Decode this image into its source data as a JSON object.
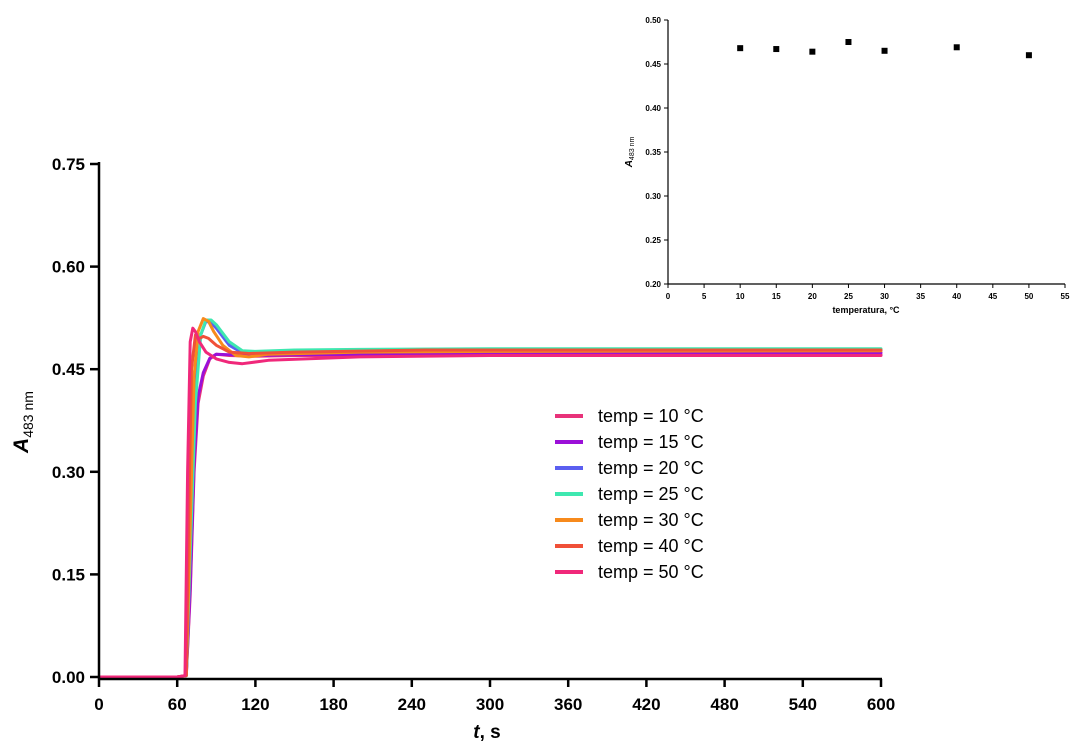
{
  "chart_data": [
    {
      "type": "line",
      "xlabel": {
        "italic": "t",
        "rest": ", s"
      },
      "ylabel": {
        "main": "A",
        "sub": "483 nm"
      },
      "xlim": [
        0,
        600
      ],
      "ylim": [
        0,
        0.75
      ],
      "xticks": [
        "0",
        "60",
        "120",
        "180",
        "240",
        "300",
        "360",
        "420",
        "480",
        "540",
        "600"
      ],
      "yticks": [
        "0.00",
        "0.15",
        "0.30",
        "0.45",
        "0.60",
        "0.75"
      ],
      "legend_position": "center-right",
      "series": [
        {
          "name": "temp = 10 °C",
          "color": "#e8327a",
          "x": [
            0,
            60,
            67,
            70,
            73,
            76,
            80,
            85,
            90,
            100,
            120,
            150,
            200,
            300,
            600
          ],
          "y": [
            0,
            0,
            0.002,
            0.12,
            0.3,
            0.4,
            0.44,
            0.465,
            0.472,
            0.47,
            0.469,
            0.47,
            0.47,
            0.47,
            0.471
          ]
        },
        {
          "name": "temp = 15 °C",
          "color": "#9b10d8",
          "x": [
            0,
            60,
            67,
            70,
            73,
            76,
            80,
            85,
            90,
            100,
            120,
            150,
            200,
            300,
            600
          ],
          "y": [
            0,
            0,
            0.002,
            0.13,
            0.31,
            0.41,
            0.445,
            0.466,
            0.472,
            0.471,
            0.47,
            0.471,
            0.472,
            0.473,
            0.474
          ]
        },
        {
          "name": "temp = 20 °C",
          "color": "#5b5ff0",
          "x": [
            0,
            60,
            67,
            70,
            74,
            78,
            82,
            86,
            90,
            100,
            110,
            120,
            150,
            200,
            300,
            600
          ],
          "y": [
            0,
            0,
            0.002,
            0.2,
            0.42,
            0.5,
            0.52,
            0.518,
            0.51,
            0.485,
            0.474,
            0.473,
            0.475,
            0.476,
            0.477,
            0.478
          ]
        },
        {
          "name": "temp = 25 °C",
          "color": "#3ee8b0",
          "x": [
            0,
            60,
            67,
            70,
            74,
            78,
            82,
            86,
            90,
            100,
            110,
            120,
            150,
            200,
            300,
            600
          ],
          "y": [
            0,
            0,
            0.002,
            0.18,
            0.4,
            0.5,
            0.522,
            0.522,
            0.515,
            0.49,
            0.477,
            0.476,
            0.478,
            0.479,
            0.48,
            0.48
          ]
        },
        {
          "name": "temp = 30 °C",
          "color": "#f78a1c",
          "x": [
            0,
            60,
            67,
            70,
            73,
            76,
            80,
            84,
            88,
            95,
            105,
            115,
            130,
            200,
            300,
            600
          ],
          "y": [
            0,
            0,
            0.002,
            0.22,
            0.44,
            0.505,
            0.524,
            0.52,
            0.505,
            0.485,
            0.47,
            0.468,
            0.472,
            0.475,
            0.476,
            0.477
          ]
        },
        {
          "name": "temp = 40 °C",
          "color": "#f05038",
          "x": [
            0,
            60,
            67,
            69,
            71,
            74,
            77,
            80,
            84,
            90,
            100,
            115,
            150,
            250,
            600
          ],
          "y": [
            0,
            0,
            0.002,
            0.25,
            0.45,
            0.5,
            0.495,
            0.498,
            0.495,
            0.485,
            0.475,
            0.473,
            0.475,
            0.478,
            0.478
          ]
        },
        {
          "name": "temp = 50 °C",
          "color": "#f0287a",
          "x": [
            0,
            60,
            66,
            68,
            70,
            72,
            74,
            77,
            82,
            90,
            100,
            110,
            130,
            200,
            300,
            600
          ],
          "y": [
            0,
            0,
            0.002,
            0.3,
            0.49,
            0.51,
            0.505,
            0.49,
            0.475,
            0.465,
            0.46,
            0.458,
            0.463,
            0.468,
            0.47,
            0.47
          ]
        }
      ]
    },
    {
      "type": "scatter",
      "xlabel": "temperatura, °C",
      "ylabel": {
        "main": "A",
        "sub": "483 nm"
      },
      "xlim": [
        0,
        55
      ],
      "ylim": [
        0.2,
        0.5
      ],
      "xticks": [
        "0",
        "5",
        "10",
        "15",
        "20",
        "25",
        "30",
        "35",
        "40",
        "45",
        "50",
        "55"
      ],
      "yticks": [
        "0.20",
        "0.25",
        "0.30",
        "0.35",
        "0.40",
        "0.45",
        "0.50"
      ],
      "x": [
        10,
        15,
        20,
        25,
        30,
        40,
        50
      ],
      "y": [
        0.468,
        0.467,
        0.464,
        0.475,
        0.465,
        0.469,
        0.46
      ],
      "color": "#000000"
    }
  ]
}
